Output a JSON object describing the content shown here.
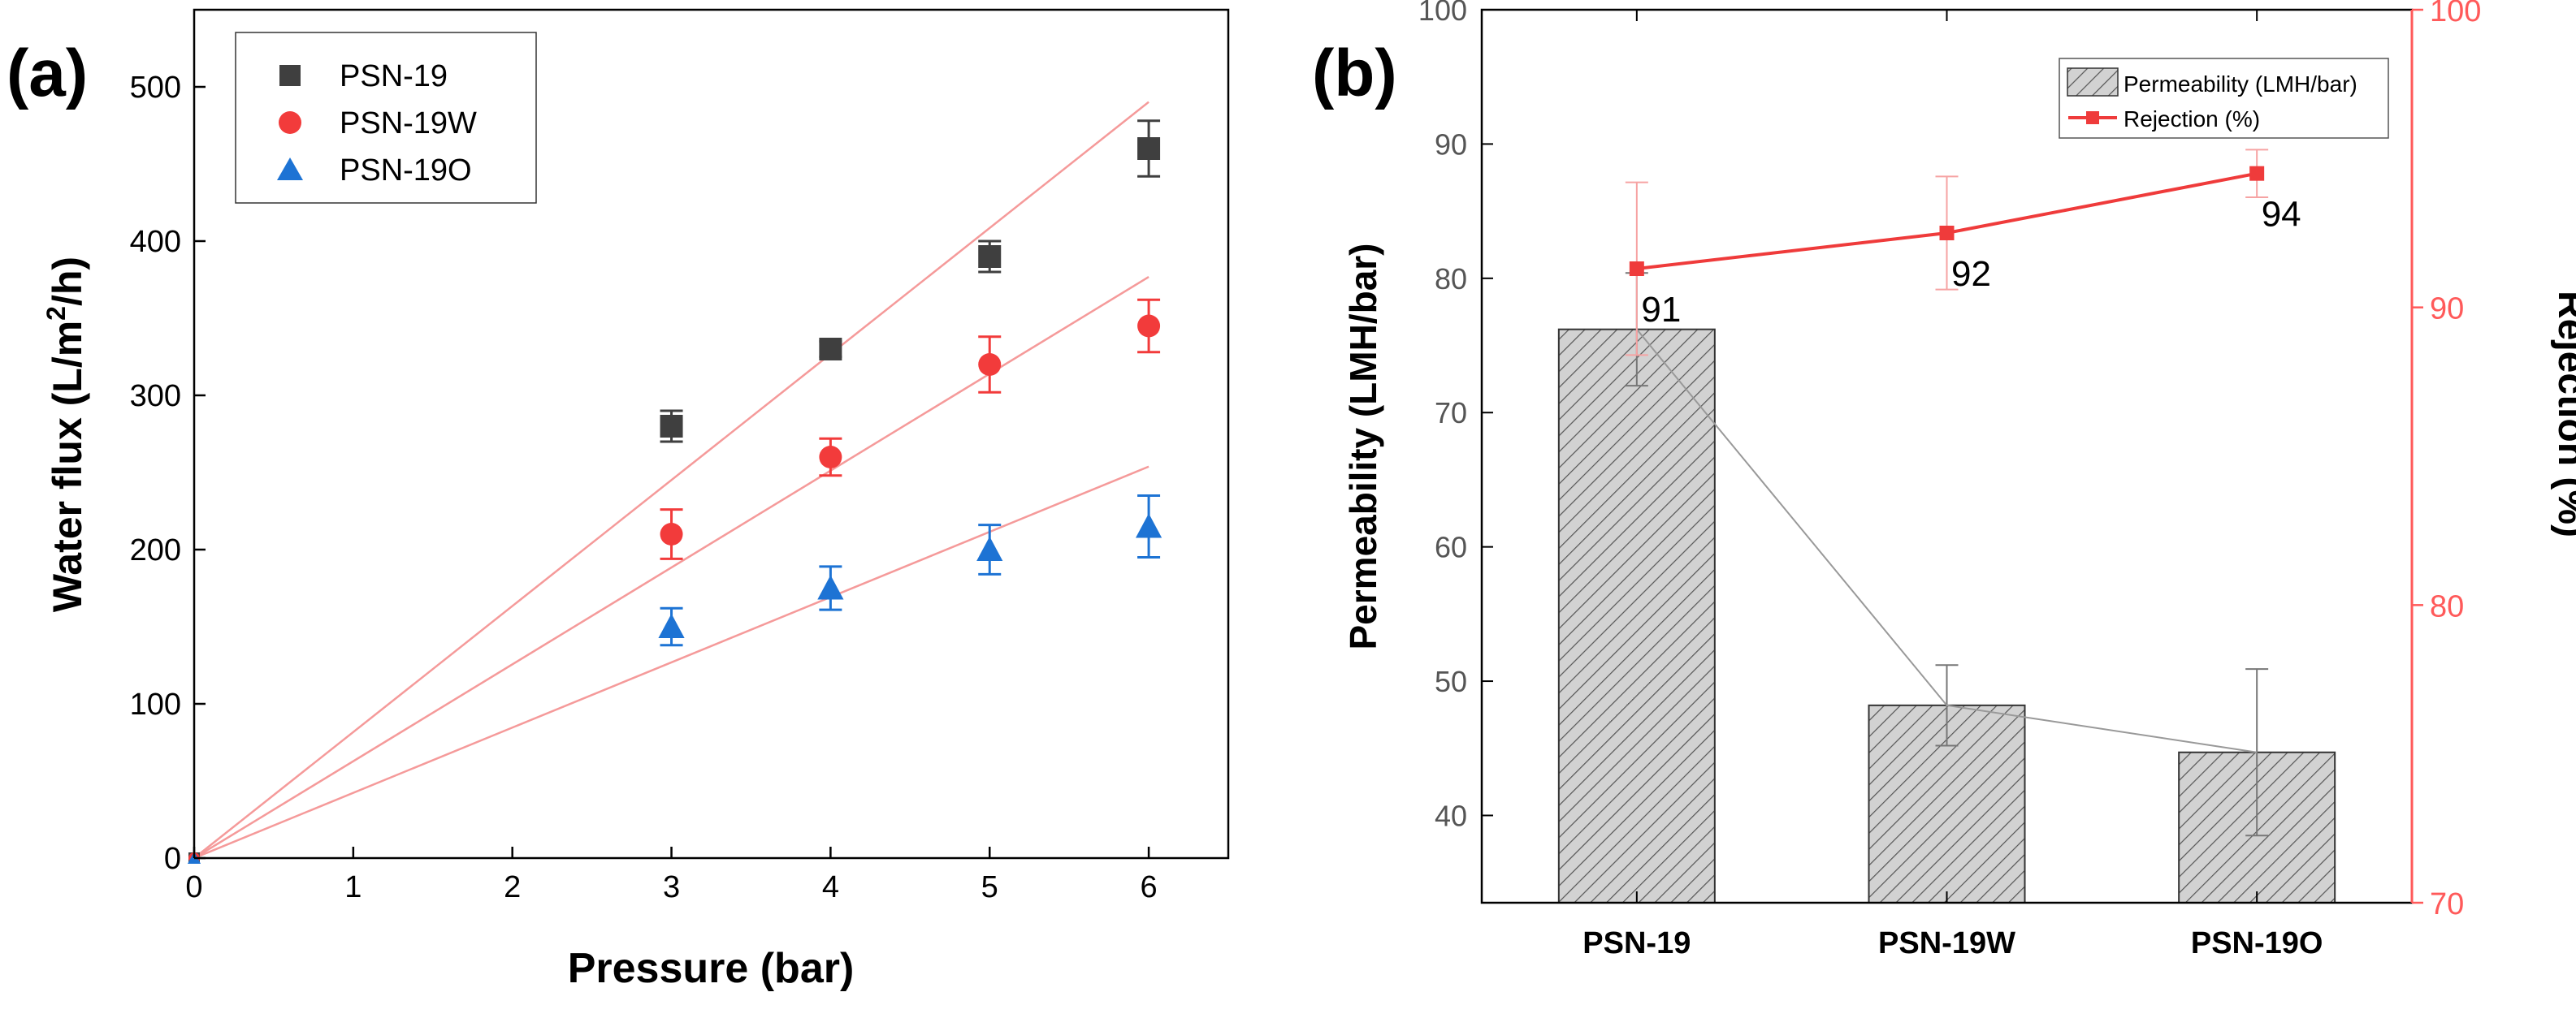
{
  "chart_data": [
    {
      "panel_label": "(a)",
      "type": "scatter",
      "xlabel": "Pressure (bar)",
      "ylabel_main": "Water flux (L/m",
      "ylabel_sup": "2",
      "ylabel_tail": "/h)",
      "xlim": [
        0,
        6.5
      ],
      "ylim": [
        0,
        550
      ],
      "xticks": [
        0,
        1,
        2,
        3,
        4,
        5,
        6
      ],
      "yticks": [
        0,
        100,
        200,
        300,
        400,
        500
      ],
      "legend_position": "top-left",
      "series": [
        {
          "name": "PSN-19",
          "marker": "square",
          "color": "#3f3f3f",
          "x": [
            0,
            3,
            4,
            5,
            6
          ],
          "y": [
            0,
            280,
            330,
            390,
            460
          ],
          "err": [
            0,
            10,
            5,
            10,
            18
          ],
          "fit_slope": 81.7
        },
        {
          "name": "PSN-19W",
          "marker": "circle",
          "color": "#f23b3b",
          "x": [
            0,
            3,
            4,
            5,
            6
          ],
          "y": [
            0,
            210,
            260,
            320,
            345
          ],
          "err": [
            0,
            16,
            12,
            18,
            17
          ],
          "fit_slope": 62.8
        },
        {
          "name": "PSN-19O",
          "marker": "triangle",
          "color": "#1d73d4",
          "x": [
            0,
            3,
            4,
            5,
            6
          ],
          "y": [
            0,
            150,
            175,
            200,
            215
          ],
          "err": [
            0,
            12,
            14,
            16,
            20
          ],
          "fit_slope": 42.3
        }
      ],
      "fit_line_color": "#f59a9a"
    },
    {
      "panel_label": "(b)",
      "type": "bar",
      "categories": [
        "PSN-19",
        "PSN-19W",
        "PSN-19O"
      ],
      "ylabel_left": "Permeability (LMH/bar)",
      "ylabel_right": "Rejection (%)",
      "ylim_left": [
        33.5,
        100
      ],
      "ylim_right": [
        70,
        100
      ],
      "yticks_left": [
        40,
        50,
        60,
        70,
        80,
        90,
        100
      ],
      "yticks_right": [
        70,
        80,
        90,
        100
      ],
      "legend_position": "top-right",
      "series": [
        {
          "name": "Permeability (LMH/bar)",
          "axis": "left",
          "type": "bar",
          "pattern": "hatched",
          "values": [
            76.2,
            48.2,
            44.7
          ],
          "err": [
            4.2,
            3.0,
            6.2
          ]
        },
        {
          "name": "Rejection (%)",
          "axis": "right",
          "type": "line",
          "color": "#ef3b3b",
          "values": [
            91.3,
            92.5,
            94.5
          ],
          "err": [
            2.9,
            1.9,
            0.8
          ]
        }
      ],
      "data_labels": [
        "91",
        "92",
        "94"
      ],
      "right_axis_color": "#ff5a5a"
    }
  ]
}
